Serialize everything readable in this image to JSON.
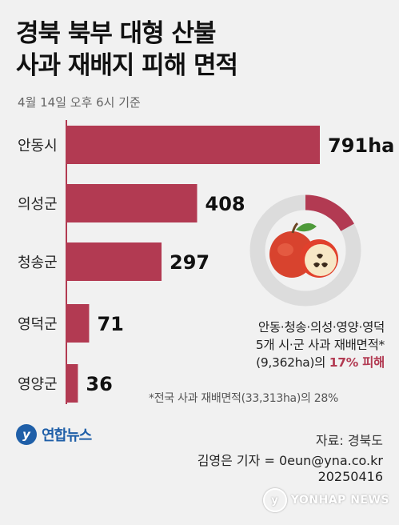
{
  "header": {
    "title_line1": "경북 북부 대형 산불",
    "title_line2": "사과 재배지 피해 면적",
    "subtitle": "4월 14일 오후 6시 기준"
  },
  "chart_data": {
    "type": "bar",
    "orientation": "horizontal",
    "categories": [
      "안동시",
      "의성군",
      "청송군",
      "영덕군",
      "영양군"
    ],
    "values": [
      791,
      408,
      297,
      71,
      36
    ],
    "value_labels": [
      "791ha",
      "408",
      "297",
      "71",
      "36"
    ],
    "unit": "ha",
    "xlim": [
      0,
      791
    ],
    "bar_color": "#b23a52",
    "donut": {
      "percent": 17,
      "highlight_color": "#b23a52",
      "rest_color": "#dcdcdc"
    }
  },
  "note": {
    "line1": "안동·청송·의성·영양·영덕",
    "line2": "5개 시·군 사과 재배면적*",
    "line3_prefix": "(9,362ha)의 ",
    "line3_highlight": "17% 피해"
  },
  "footnote": "*전국 사과 재배면적(33,313ha)의 28%",
  "footer": {
    "logo_text": "연합뉴스",
    "source": "자료: 경북도",
    "reporter": "김영은 기자 = 0eun@yna.co.kr",
    "date": "20250416",
    "watermark": "YONHAP NEWS"
  }
}
